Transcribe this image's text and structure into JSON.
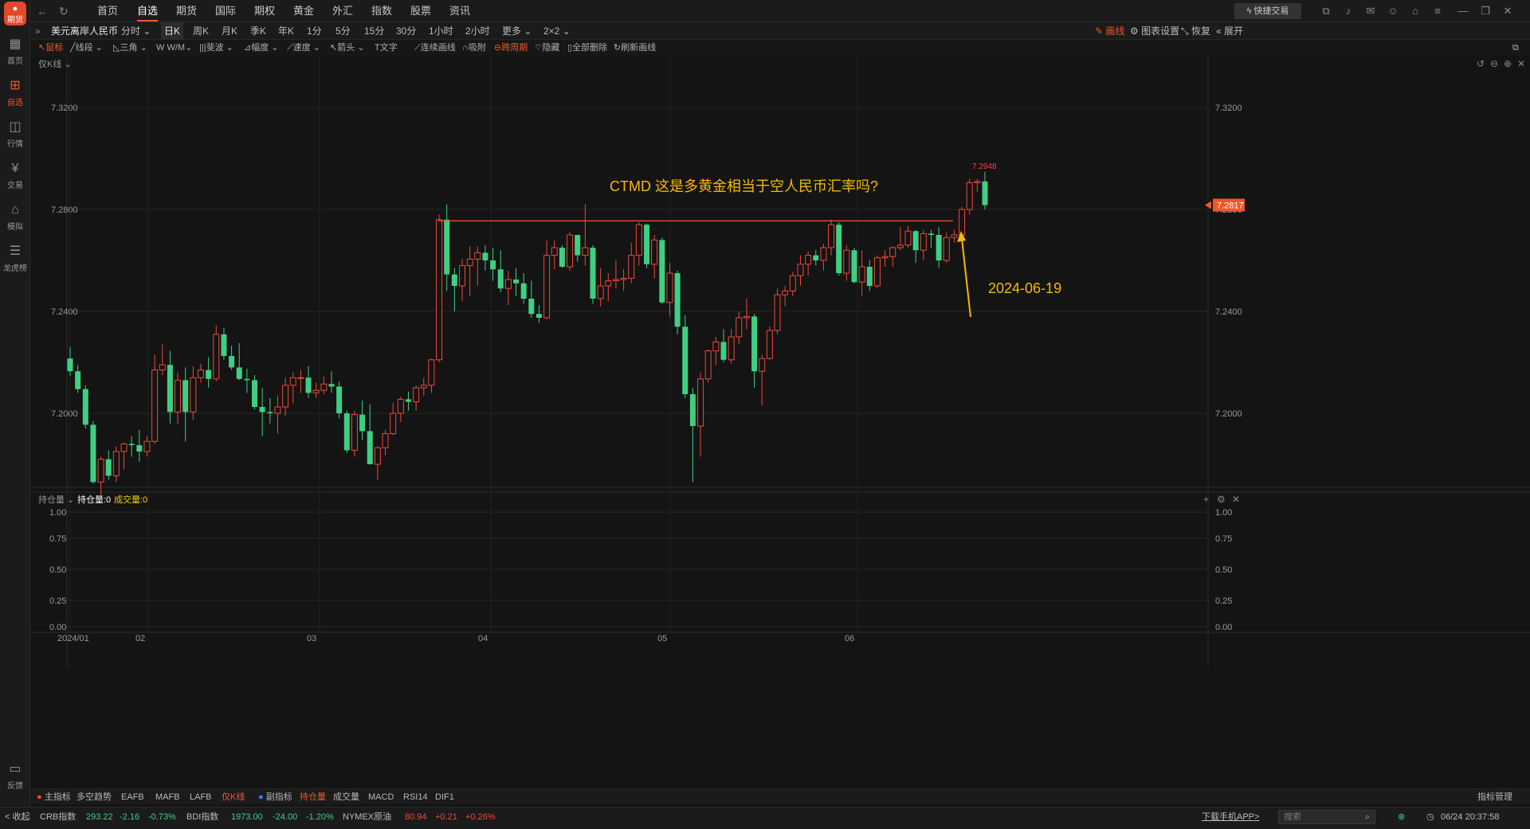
{
  "app": {
    "logo_label": "期货"
  },
  "sidebar": [
    {
      "label": "首页",
      "icon": "grid-icon"
    },
    {
      "label": "自选",
      "icon": "plus-icon",
      "active": true
    },
    {
      "label": "行情",
      "icon": "chart-icon"
    },
    {
      "label": "交易",
      "icon": "yen-icon"
    },
    {
      "label": "模拟",
      "icon": "gamepad-icon"
    },
    {
      "label": "龙虎榜",
      "icon": "database-icon"
    },
    {
      "label": "反馈",
      "icon": "chat-icon"
    }
  ],
  "topnav": {
    "tabs": [
      "首页",
      "自选",
      "期货",
      "国际",
      "期权",
      "黄金",
      "外汇",
      "指数",
      "股票",
      "资讯"
    ],
    "active": "自选",
    "quick_trade": "快捷交易"
  },
  "periods": {
    "symbol": "美元离岸人民币",
    "items": [
      "分时",
      "日K",
      "周K",
      "月K",
      "季K",
      "年K",
      "1分",
      "5分",
      "15分",
      "30分",
      "1小时",
      "2小时",
      "更多",
      "2×2"
    ],
    "active": "日K",
    "right": [
      "画线",
      "图表设置",
      "恢复",
      "展开"
    ]
  },
  "drawtools": [
    "鼠标",
    "线段",
    "三角",
    "W/M",
    "斐波",
    "幅度",
    "速度",
    "箭头",
    "文字",
    "连续画线",
    "吸附",
    "跨周期",
    "隐藏",
    "全部删除",
    "刷新画线"
  ],
  "chart_data": {
    "type": "candlestick",
    "mode_label": "仅K线",
    "y_ticks": [
      "7.3200",
      "7.2800",
      "7.2400",
      "7.2000"
    ],
    "x_ticks": [
      "2024/01",
      "02",
      "03",
      "04",
      "05",
      "06"
    ],
    "current_price": "7.2817",
    "high_label": "7.2948",
    "annotation": "CTMD 这是多黄金相当于空人民币汇率吗?",
    "date_annotation": "2024-06-19",
    "resistance_level": 7.2755,
    "colors": {
      "up": "#f0473b",
      "down": "#3fcf84",
      "accent": "#f0572b",
      "annotation": "#f5b800"
    },
    "candles": [
      [
        7.2215,
        7.226,
        7.2145,
        7.2165
      ],
      [
        7.2165,
        7.219,
        7.208,
        7.2095
      ],
      [
        7.2095,
        7.211,
        7.194,
        7.1955
      ],
      [
        7.1955,
        7.197,
        7.1725,
        7.173
      ],
      [
        7.173,
        7.183,
        7.168,
        7.182
      ],
      [
        7.182,
        7.1855,
        7.174,
        7.1755
      ],
      [
        7.1755,
        7.187,
        7.173,
        7.185
      ],
      [
        7.185,
        7.1885,
        7.178,
        7.188
      ],
      [
        7.188,
        7.191,
        7.183,
        7.1875
      ],
      [
        7.1875,
        7.1935,
        7.181,
        7.185
      ],
      [
        7.185,
        7.191,
        7.183,
        7.189
      ],
      [
        7.189,
        7.223,
        7.188,
        7.217
      ],
      [
        7.217,
        7.227,
        7.215,
        7.219
      ],
      [
        7.219,
        7.2245,
        7.196,
        7.2005
      ],
      [
        7.2005,
        7.216,
        7.196,
        7.213
      ],
      [
        7.213,
        7.218,
        7.189,
        7.2005
      ],
      [
        7.2005,
        7.2185,
        7.1975,
        7.214
      ],
      [
        7.214,
        7.2195,
        7.212,
        7.217
      ],
      [
        7.217,
        7.222,
        7.21,
        7.2135
      ],
      [
        7.2135,
        7.2345,
        7.2125,
        7.231
      ],
      [
        7.231,
        7.2335,
        7.221,
        7.2225
      ],
      [
        7.2225,
        7.2265,
        7.217,
        7.218
      ],
      [
        7.218,
        7.2275,
        7.213,
        7.2135
      ],
      [
        7.2135,
        7.2175,
        7.208,
        7.213
      ],
      [
        7.213,
        7.215,
        7.2015,
        7.2025
      ],
      [
        7.2025,
        7.21,
        7.191,
        7.2005
      ],
      [
        7.2005,
        7.206,
        7.196,
        7.2
      ],
      [
        7.2,
        7.207,
        7.192,
        7.2025
      ],
      [
        7.2025,
        7.214,
        7.199,
        7.211
      ],
      [
        7.211,
        7.216,
        7.204,
        7.214
      ],
      [
        7.214,
        7.217,
        7.208,
        7.214
      ],
      [
        7.214,
        7.2185,
        7.206,
        7.208
      ],
      [
        7.208,
        7.212,
        7.206,
        7.209
      ],
      [
        7.209,
        7.2145,
        7.2075,
        7.2115
      ],
      [
        7.2115,
        7.2165,
        7.208,
        7.2105
      ],
      [
        7.2105,
        7.2125,
        7.198,
        7.2
      ],
      [
        7.2,
        7.201,
        7.1845,
        7.1855
      ],
      [
        7.1855,
        7.201,
        7.183,
        7.1995
      ],
      [
        7.1995,
        7.205,
        7.1895,
        7.193
      ],
      [
        7.193,
        7.2035,
        7.18,
        7.18
      ],
      [
        7.18,
        7.187,
        7.174,
        7.1865
      ],
      [
        7.1865,
        7.1935,
        7.1835,
        7.192
      ],
      [
        7.192,
        7.204,
        7.1915,
        7.2
      ],
      [
        7.2,
        7.2065,
        7.1965,
        7.2055
      ],
      [
        7.2055,
        7.2085,
        7.201,
        7.2045
      ],
      [
        7.2045,
        7.211,
        7.201,
        7.21
      ],
      [
        7.21,
        7.214,
        7.207,
        7.211
      ],
      [
        7.211,
        7.2215,
        7.208,
        7.221
      ],
      [
        7.221,
        7.278,
        7.22,
        7.276
      ],
      [
        7.276,
        7.282,
        7.248,
        7.2545
      ],
      [
        7.2545,
        7.257,
        7.24,
        7.25
      ],
      [
        7.25,
        7.2605,
        7.244,
        7.258
      ],
      [
        7.258,
        7.2655,
        7.246,
        7.2605
      ],
      [
        7.2605,
        7.2655,
        7.25,
        7.263
      ],
      [
        7.263,
        7.266,
        7.256,
        7.26
      ],
      [
        7.26,
        7.265,
        7.252,
        7.2565
      ],
      [
        7.2565,
        7.264,
        7.2475,
        7.249
      ],
      [
        7.249,
        7.256,
        7.2425,
        7.2525
      ],
      [
        7.2525,
        7.257,
        7.246,
        7.251
      ],
      [
        7.251,
        7.255,
        7.243,
        7.245
      ],
      [
        7.245,
        7.252,
        7.2375,
        7.239
      ],
      [
        7.239,
        7.2425,
        7.2355,
        7.2375
      ],
      [
        7.2375,
        7.268,
        7.237,
        7.262
      ],
      [
        7.262,
        7.268,
        7.2565,
        7.265
      ],
      [
        7.265,
        7.266,
        7.257,
        7.2575
      ],
      [
        7.2575,
        7.271,
        7.256,
        7.27
      ],
      [
        7.27,
        7.27,
        7.2595,
        7.262
      ],
      [
        7.262,
        7.282,
        7.258,
        7.265
      ],
      [
        7.265,
        7.266,
        7.243,
        7.245
      ],
      [
        7.245,
        7.257,
        7.242,
        7.25
      ],
      [
        7.25,
        7.255,
        7.244,
        7.252
      ],
      [
        7.252,
        7.26,
        7.249,
        7.2525
      ],
      [
        7.2525,
        7.2565,
        7.248,
        7.253
      ],
      [
        7.253,
        7.267,
        7.251,
        7.262
      ],
      [
        7.262,
        7.275,
        7.258,
        7.274
      ],
      [
        7.274,
        7.2745,
        7.257,
        7.2585
      ],
      [
        7.2585,
        7.27,
        7.253,
        7.268
      ],
      [
        7.268,
        7.269,
        7.243,
        7.2435
      ],
      [
        7.2435,
        7.259,
        7.238,
        7.255
      ],
      [
        7.255,
        7.256,
        7.231,
        7.234
      ],
      [
        7.234,
        7.2385,
        7.206,
        7.2075
      ],
      [
        7.2075,
        7.21,
        7.173,
        7.195
      ],
      [
        7.195,
        7.216,
        7.183,
        7.2135
      ],
      [
        7.2135,
        7.225,
        7.212,
        7.2245
      ],
      [
        7.2245,
        7.23,
        7.219,
        7.228
      ],
      [
        7.228,
        7.233,
        7.22,
        7.221
      ],
      [
        7.221,
        7.233,
        7.2195,
        7.23
      ],
      [
        7.23,
        7.24,
        7.227,
        7.2375
      ],
      [
        7.2375,
        7.245,
        7.233,
        7.238
      ],
      [
        7.238,
        7.239,
        7.21,
        7.2165
      ],
      [
        7.2165,
        7.223,
        7.203,
        7.2215
      ],
      [
        7.2215,
        7.234,
        7.221,
        7.2325
      ],
      [
        7.2325,
        7.249,
        7.231,
        7.2465
      ],
      [
        7.2465,
        7.25,
        7.242,
        7.248
      ],
      [
        7.248,
        7.2555,
        7.246,
        7.254
      ],
      [
        7.254,
        7.262,
        7.25,
        7.2585
      ],
      [
        7.2585,
        7.2635,
        7.254,
        7.262
      ],
      [
        7.262,
        7.264,
        7.258,
        7.26
      ],
      [
        7.26,
        7.2665,
        7.256,
        7.265
      ],
      [
        7.265,
        7.276,
        7.262,
        7.274
      ],
      [
        7.274,
        7.275,
        7.254,
        7.255
      ],
      [
        7.255,
        7.266,
        7.252,
        7.264
      ],
      [
        7.264,
        7.265,
        7.251,
        7.2515
      ],
      [
        7.2515,
        7.264,
        7.246,
        7.2575
      ],
      [
        7.2575,
        7.26,
        7.248,
        7.25
      ],
      [
        7.25,
        7.262,
        7.249,
        7.261
      ],
      [
        7.261,
        7.264,
        7.2575,
        7.2615
      ],
      [
        7.2615,
        7.2655,
        7.2575,
        7.265
      ],
      [
        7.265,
        7.273,
        7.264,
        7.266
      ],
      [
        7.266,
        7.2735,
        7.265,
        7.2715
      ],
      [
        7.2715,
        7.272,
        7.259,
        7.264
      ],
      [
        7.264,
        7.272,
        7.26,
        7.2705
      ],
      [
        7.2705,
        7.272,
        7.265,
        7.27
      ],
      [
        7.27,
        7.273,
        7.257,
        7.26
      ],
      [
        7.26,
        7.271,
        7.259,
        7.269
      ],
      [
        7.269,
        7.272,
        7.267,
        7.27
      ],
      [
        7.27,
        7.281,
        7.269,
        7.28
      ],
      [
        7.28,
        7.292,
        7.278,
        7.2905
      ],
      [
        7.2905,
        7.292,
        7.287,
        7.291
      ],
      [
        7.291,
        7.2948,
        7.28,
        7.2817
      ]
    ]
  },
  "volume_pane": {
    "selector": "持仓量",
    "legend": [
      {
        "label": "持仓量:0",
        "color": "#ffffff"
      },
      {
        "label": "成交量:0",
        "color": "#f0d000"
      }
    ],
    "y_ticks": [
      "1.00",
      "0.75",
      "0.50",
      "0.25",
      "0.00"
    ]
  },
  "indicators": {
    "main_label": "主指标",
    "items": [
      "多空趋势",
      "EAFB",
      "MAFB",
      "LAFB",
      "仅K线"
    ],
    "active_main": "仅K线",
    "sub_label": "副指标",
    "sub_items": [
      "持仓量",
      "成交量",
      "MACD",
      "RSI14",
      "DIF1"
    ],
    "active_sub": "持仓量",
    "manage": "指标管理"
  },
  "status": {
    "collapse": "< 收起",
    "tickers": [
      {
        "name": "CRB指数",
        "price": "293.22",
        "chg": "-2.16",
        "pct": "-0.73%",
        "dir": "down"
      },
      {
        "name": "BDI指数",
        "price": "1973.00",
        "chg": "-24.00",
        "pct": "-1.20%",
        "dir": "down"
      },
      {
        "name": "NYMEX原油",
        "price": "80.94",
        "chg": "+0.21",
        "pct": "+0.26%",
        "dir": "up"
      }
    ],
    "download": "下载手机APP>",
    "search_placeholder": "搜索",
    "datetime": "06/24 20:37:58"
  }
}
